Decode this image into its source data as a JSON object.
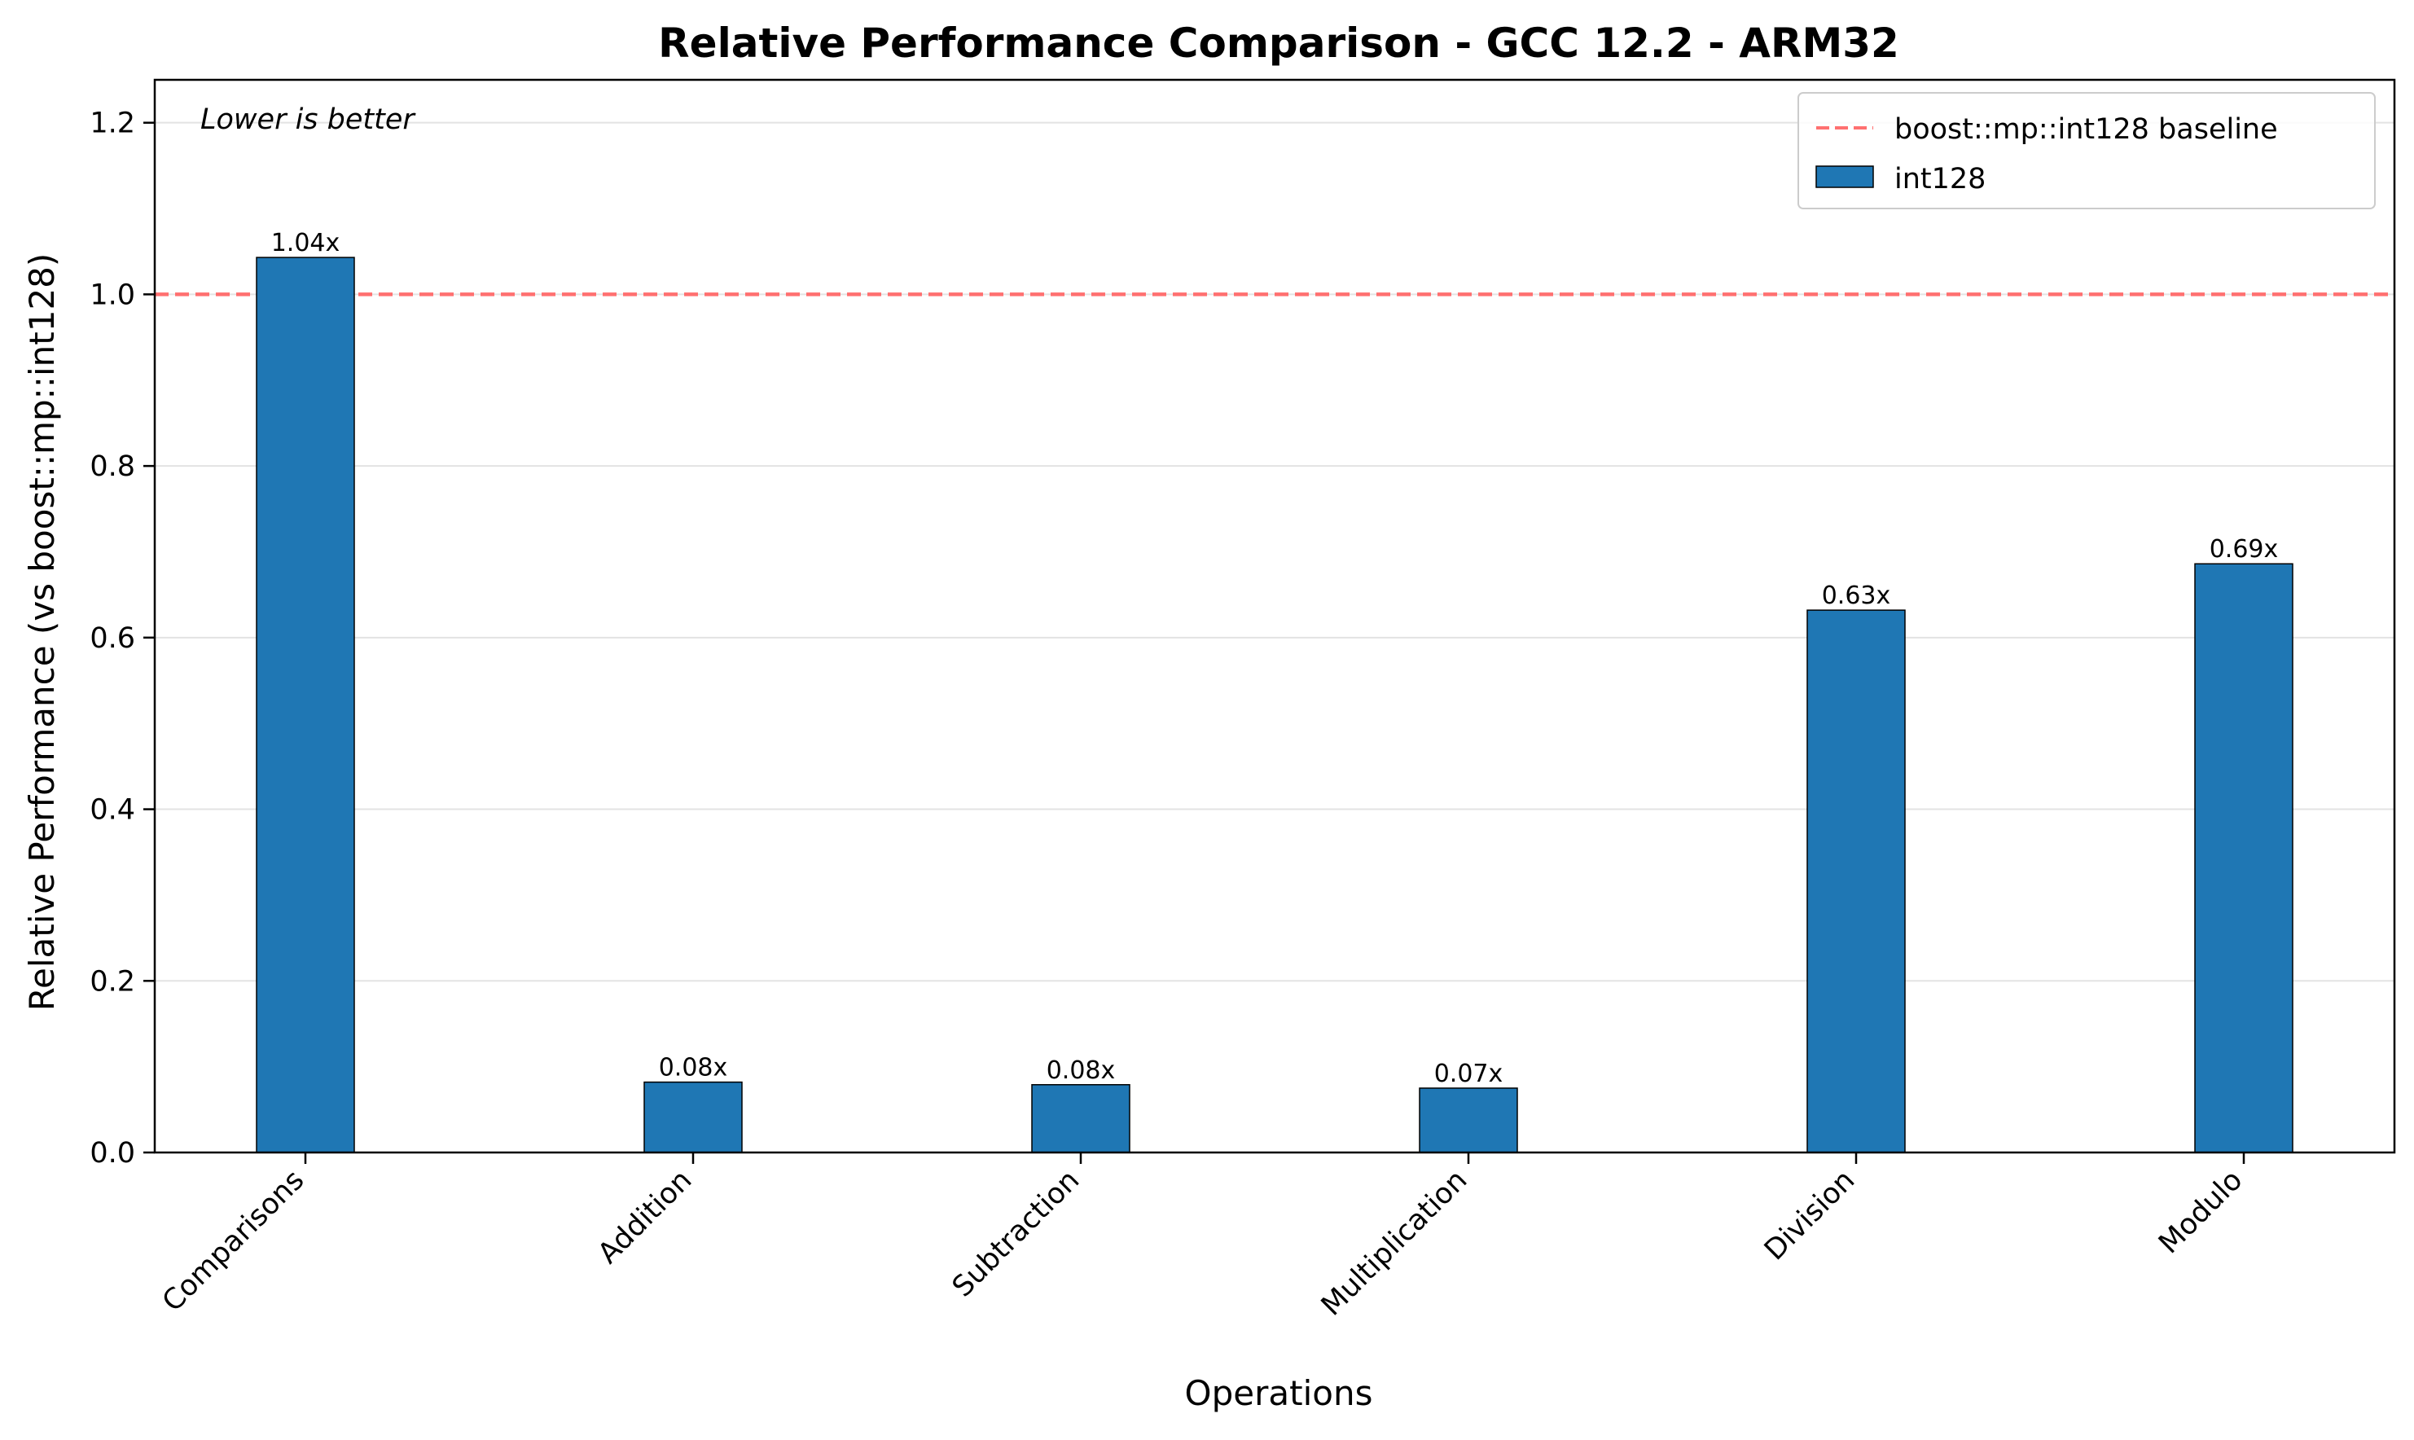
{
  "chart_data": {
    "type": "bar",
    "title": "Relative Performance Comparison - GCC 12.2 - ARM32",
    "xlabel": "Operations",
    "ylabel": "Relative Performance (vs boost::mp::int128)",
    "ylim": [
      0,
      1.25
    ],
    "yticks": [
      "0.0",
      "0.2",
      "0.4",
      "0.6",
      "0.8",
      "1.0",
      "1.2"
    ],
    "ytick_values": [
      0,
      0.2,
      0.4,
      0.6,
      0.8,
      1.0,
      1.2
    ],
    "categories": [
      "Comparisons",
      "Addition",
      "Subtraction",
      "Multiplication",
      "Division",
      "Modulo"
    ],
    "series": [
      {
        "name": "int128",
        "values": [
          1.043,
          0.082,
          0.079,
          0.075,
          0.632,
          0.686
        ],
        "labels": [
          "1.04x",
          "0.08x",
          "0.08x",
          "0.07x",
          "0.63x",
          "0.69x"
        ],
        "color": "#1f77b4"
      }
    ],
    "baseline": {
      "name": "boost::mp::int128 baseline",
      "value": 1.0,
      "color": "#ff7070",
      "style": "dashed"
    },
    "annotation": "Lower is better",
    "grid": "y",
    "legend": "top-right"
  }
}
